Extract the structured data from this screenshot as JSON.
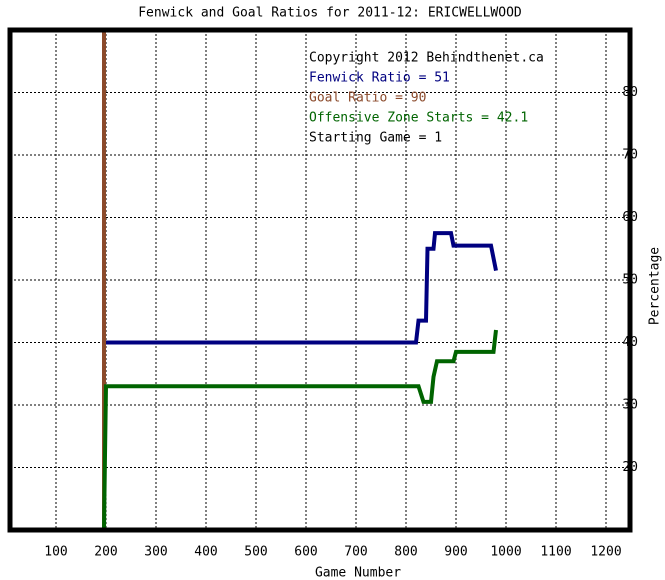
{
  "chart_data": {
    "type": "line",
    "title": "Fenwick and Goal Ratios for 2011-12: ERICWELLWOOD",
    "x_label": "Game Number",
    "y_label": "Percentage",
    "annotations": [
      {
        "text": "Copyright 2012 Behindthenet.ca",
        "color": "#000000"
      },
      {
        "text": "Fenwick Ratio = 51",
        "color": "#000080"
      },
      {
        "text": "Goal Ratio = 90",
        "color": "#8b4a2b"
      },
      {
        "text": "Offensive Zone Starts = 42.1",
        "color": "#006400"
      },
      {
        "text": "Starting Game = 1",
        "color": "#000000"
      }
    ],
    "xlim": [
      8,
      1248
    ],
    "ylim": [
      10,
      90
    ],
    "xticks": [
      100,
      200,
      300,
      400,
      500,
      600,
      700,
      800,
      900,
      1000,
      1100,
      1200
    ],
    "yticks": [
      20,
      30,
      40,
      50,
      60,
      70,
      80
    ],
    "grid": true,
    "series": [
      {
        "color": "#8b4a2b",
        "x": [
          196,
          196
        ],
        "values": [
          10,
          90
        ]
      },
      {
        "color": "#000080",
        "x": [
          200,
          820,
          825,
          840,
          843,
          855,
          858,
          890,
          895,
          970,
          980
        ],
        "values": [
          40,
          40,
          43.5,
          43.5,
          55,
          55,
          57.5,
          57.5,
          55.5,
          55.5,
          51.5
        ]
      },
      {
        "color": "#006400",
        "x": [
          196,
          198,
          200,
          825,
          835,
          850,
          855,
          862,
          895,
          900,
          975,
          980
        ],
        "values": [
          10,
          22,
          33,
          33,
          30.5,
          30.5,
          34.5,
          37,
          37,
          38.5,
          38.5,
          42
        ]
      }
    ]
  }
}
